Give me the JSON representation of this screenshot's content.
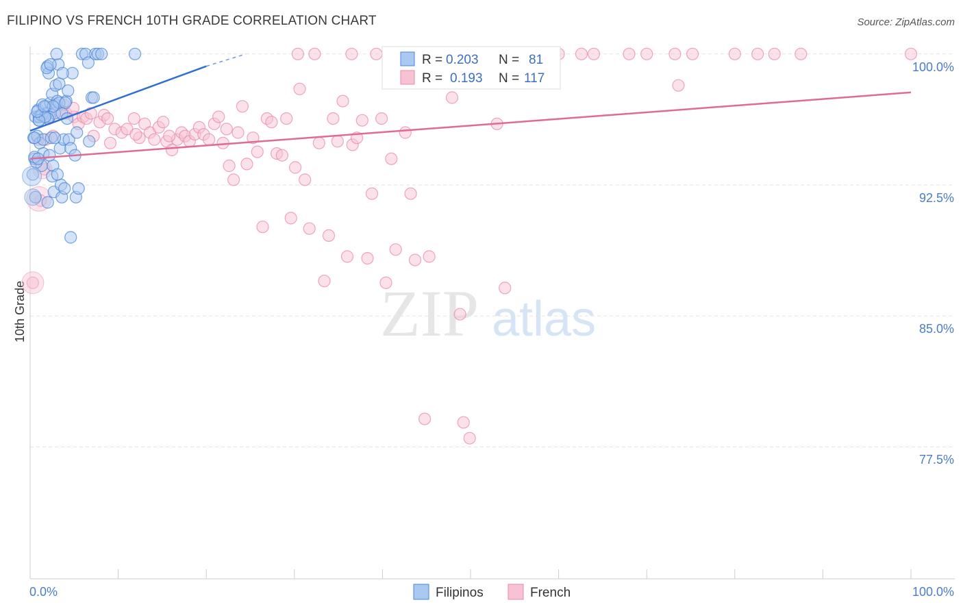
{
  "header": {
    "title": "FILIPINO VS FRENCH 10TH GRADE CORRELATION CHART",
    "source": "Source: ZipAtlas.com"
  },
  "watermark": {
    "zip": "ZIP",
    "atlas": "atlas"
  },
  "colors": {
    "filipinos_fill": "#aac8f0",
    "filipinos_stroke": "#4a86d8",
    "filipinos_line": "#2f6fd0",
    "french_fill": "#f7c3d3",
    "french_stroke": "#e889a8",
    "french_line": "#e06a93",
    "axis_text": "#4a7cc9",
    "grid": "#e3e3e3"
  },
  "stats": {
    "filipinos": {
      "r_label": "R =",
      "r_value": "0.203",
      "n_label": "N =",
      "n_value": "81"
    },
    "french": {
      "r_label": "R =",
      "r_value": "0.193",
      "n_label": "N =",
      "n_value": "117"
    }
  },
  "chart_data": {
    "type": "scatter",
    "title": "FILIPINO VS FRENCH 10TH GRADE CORRELATION CHART",
    "xlabel": "",
    "ylabel": "10th Grade",
    "xlim": [
      0,
      100
    ],
    "ylim": [
      71,
      101.5
    ],
    "x_tick_labels": [
      "0.0%",
      "100.0%"
    ],
    "y_ticks": [
      {
        "value": 100.0,
        "label": "100.0%"
      },
      {
        "value": 92.5,
        "label": "92.5%"
      },
      {
        "value": 85.0,
        "label": "85.0%"
      },
      {
        "value": 77.5,
        "label": "77.5%"
      }
    ],
    "grid": true,
    "legend": [
      "Filipinos",
      "French"
    ],
    "series": [
      {
        "name": "Filipinos",
        "r": 0.203,
        "n": 81,
        "trend": {
          "x0": 0,
          "y0": 95.6,
          "x1": 20,
          "y1": 99.3,
          "dash_to_x": 24.5,
          "dash_to_y": 100.0
        },
        "points": [
          [
            0.3,
            93.1
          ],
          [
            0.4,
            95.2
          ],
          [
            0.5,
            94.0
          ],
          [
            0.6,
            96.4
          ],
          [
            0.6,
            91.8
          ],
          [
            0.8,
            95.3
          ],
          [
            0.9,
            96.8
          ],
          [
            1.0,
            96.2
          ],
          [
            1.1,
            94.9
          ],
          [
            1.2,
            96.5
          ],
          [
            1.3,
            93.6
          ],
          [
            1.4,
            97.1
          ],
          [
            1.5,
            95.1
          ],
          [
            1.6,
            96.4
          ],
          [
            1.8,
            97.0
          ],
          [
            1.9,
            96.6
          ],
          [
            2.0,
            99.3
          ],
          [
            2.1,
            98.9
          ],
          [
            2.2,
            96.4
          ],
          [
            2.3,
            97.2
          ],
          [
            2.4,
            95.2
          ],
          [
            2.5,
            97.7
          ],
          [
            2.6,
            93.6
          ],
          [
            2.7,
            92.1
          ],
          [
            2.8,
            96.6
          ],
          [
            2.9,
            98.2
          ],
          [
            3.0,
            97.1
          ],
          [
            3.1,
            97.3
          ],
          [
            3.2,
            99.4
          ],
          [
            3.3,
            98.3
          ],
          [
            3.4,
            94.6
          ],
          [
            3.5,
            92.5
          ],
          [
            3.6,
            91.8
          ],
          [
            3.8,
            95.1
          ],
          [
            3.9,
            92.3
          ],
          [
            4.1,
            97.3
          ],
          [
            4.3,
            97.9
          ],
          [
            4.4,
            95.1
          ],
          [
            4.6,
            94.6
          ],
          [
            4.8,
            98.9
          ],
          [
            5.1,
            94.2
          ],
          [
            5.2,
            91.8
          ],
          [
            5.5,
            92.3
          ],
          [
            5.9,
            100.0
          ],
          [
            6.3,
            100.0
          ],
          [
            6.6,
            99.5
          ],
          [
            7.0,
            97.5
          ],
          [
            7.4,
            100.0
          ],
          [
            7.7,
            100.0
          ],
          [
            8.1,
            100.0
          ],
          [
            11.9,
            100.0
          ],
          [
            4.6,
            89.5
          ],
          [
            2.0,
            91.5
          ],
          [
            0.5,
            95.2
          ],
          [
            1.0,
            96.4
          ],
          [
            3.0,
            100.0
          ],
          [
            3.3,
            97.2
          ],
          [
            6.7,
            95.0
          ],
          [
            5.3,
            95.5
          ],
          [
            1.5,
            94.3
          ],
          [
            2.5,
            93.0
          ],
          [
            4.0,
            97.2
          ],
          [
            7.2,
            97.5
          ],
          [
            1.9,
            99.2
          ],
          [
            0.7,
            93.8
          ],
          [
            2.3,
            99.4
          ],
          [
            3.6,
            96.6
          ],
          [
            1.3,
            96.5
          ],
          [
            2.0,
            96.3
          ],
          [
            2.8,
            95.2
          ],
          [
            0.5,
            94.1
          ],
          [
            1.7,
            96.4
          ],
          [
            3.7,
            98.9
          ],
          [
            1.0,
            96.2
          ],
          [
            2.6,
            97.0
          ],
          [
            4.2,
            96.3
          ],
          [
            0.8,
            96.7
          ],
          [
            1.6,
            97.0
          ],
          [
            2.2,
            94.2
          ],
          [
            3.1,
            93.1
          ],
          [
            0.9,
            94.0
          ]
        ]
      },
      {
        "name": "French",
        "r": 0.193,
        "n": 117,
        "trend": {
          "x0": 0,
          "y0": 94.0,
          "x1": 100,
          "y1": 97.8
        },
        "points": [
          [
            0.3,
            86.9
          ],
          [
            1.2,
            91.6
          ],
          [
            1.6,
            93.4
          ],
          [
            2.1,
            96.3
          ],
          [
            2.6,
            95.3
          ],
          [
            3.4,
            96.6
          ],
          [
            3.8,
            97.1
          ],
          [
            4.1,
            96.6
          ],
          [
            5.0,
            96.4
          ],
          [
            5.5,
            96.0
          ],
          [
            6.0,
            96.4
          ],
          [
            6.4,
            96.3
          ],
          [
            7.2,
            95.3
          ],
          [
            7.9,
            96.1
          ],
          [
            8.4,
            96.5
          ],
          [
            8.8,
            96.3
          ],
          [
            9.1,
            94.9
          ],
          [
            9.6,
            95.7
          ],
          [
            10.4,
            95.5
          ],
          [
            11.0,
            95.7
          ],
          [
            11.8,
            96.3
          ],
          [
            12.4,
            95.2
          ],
          [
            13.0,
            96.0
          ],
          [
            13.6,
            95.5
          ],
          [
            14.1,
            95.1
          ],
          [
            14.6,
            95.8
          ],
          [
            15.1,
            96.1
          ],
          [
            15.5,
            95.0
          ],
          [
            16.1,
            94.5
          ],
          [
            16.7,
            95.1
          ],
          [
            17.2,
            95.5
          ],
          [
            17.6,
            95.3
          ],
          [
            18.1,
            95.0
          ],
          [
            18.7,
            95.4
          ],
          [
            19.2,
            95.8
          ],
          [
            19.7,
            95.4
          ],
          [
            20.3,
            95.1
          ],
          [
            20.9,
            96.0
          ],
          [
            21.4,
            96.4
          ],
          [
            21.9,
            94.9
          ],
          [
            22.6,
            93.6
          ],
          [
            23.1,
            92.8
          ],
          [
            23.6,
            95.5
          ],
          [
            24.1,
            97.0
          ],
          [
            24.6,
            93.7
          ],
          [
            25.3,
            95.2
          ],
          [
            25.8,
            94.4
          ],
          [
            26.4,
            90.1
          ],
          [
            26.9,
            96.3
          ],
          [
            27.4,
            96.1
          ],
          [
            28.0,
            94.3
          ],
          [
            28.6,
            94.2
          ],
          [
            29.1,
            96.3
          ],
          [
            29.6,
            90.6
          ],
          [
            30.1,
            93.5
          ],
          [
            30.6,
            98.0
          ],
          [
            31.2,
            92.8
          ],
          [
            31.7,
            90.0
          ],
          [
            32.3,
            100.0
          ],
          [
            32.8,
            94.9
          ],
          [
            33.4,
            87.0
          ],
          [
            33.9,
            89.6
          ],
          [
            34.4,
            96.3
          ],
          [
            34.9,
            95.0
          ],
          [
            35.5,
            97.3
          ],
          [
            36.0,
            88.4
          ],
          [
            36.6,
            94.8
          ],
          [
            37.1,
            95.2
          ],
          [
            37.7,
            96.2
          ],
          [
            38.3,
            88.3
          ],
          [
            38.8,
            92.0
          ],
          [
            39.3,
            100.0
          ],
          [
            39.9,
            96.3
          ],
          [
            40.4,
            86.9
          ],
          [
            41.0,
            94.0
          ],
          [
            41.5,
            88.8
          ],
          [
            42.1,
            100.0
          ],
          [
            42.6,
            95.5
          ],
          [
            43.2,
            92.0
          ],
          [
            43.7,
            88.2
          ],
          [
            44.2,
            99.4
          ],
          [
            44.8,
            79.1
          ],
          [
            45.3,
            88.4
          ],
          [
            46.8,
            100.0
          ],
          [
            47.9,
            97.5
          ],
          [
            48.8,
            85.1
          ],
          [
            49.2,
            78.9
          ],
          [
            49.9,
            78.0
          ],
          [
            50.8,
            100.0
          ],
          [
            52.0,
            100.0
          ],
          [
            53.0,
            96.0
          ],
          [
            53.9,
            86.6
          ],
          [
            55.0,
            100.0
          ],
          [
            56.5,
            100.0
          ],
          [
            60.0,
            100.0
          ],
          [
            62.6,
            100.0
          ],
          [
            64.0,
            100.0
          ],
          [
            68.0,
            100.0
          ],
          [
            70.0,
            100.0
          ],
          [
            73.2,
            100.0
          ],
          [
            73.6,
            98.2
          ],
          [
            75.2,
            100.0
          ],
          [
            80.0,
            100.0
          ],
          [
            82.6,
            100.0
          ],
          [
            84.5,
            100.0
          ],
          [
            87.5,
            100.0
          ],
          [
            100.0,
            100.0
          ],
          [
            1.8,
            95.1
          ],
          [
            0.9,
            95.1
          ],
          [
            2.8,
            97.1
          ],
          [
            4.9,
            96.9
          ],
          [
            6.9,
            96.6
          ],
          [
            12.0,
            95.4
          ],
          [
            15.8,
            95.3
          ],
          [
            22.3,
            95.7
          ],
          [
            30.4,
            100.0
          ],
          [
            36.5,
            100.0
          ],
          [
            47.0,
            100.0
          ],
          [
            59.0,
            100.0
          ]
        ]
      }
    ]
  },
  "legend": {
    "filipinos_label": "Filipinos",
    "french_label": "French"
  },
  "axes": {
    "ylabel": "10th Grade",
    "x_left_label": "0.0%",
    "x_right_label": "100.0%",
    "y_labels": [
      "100.0%",
      "92.5%",
      "85.0%",
      "77.5%"
    ]
  }
}
